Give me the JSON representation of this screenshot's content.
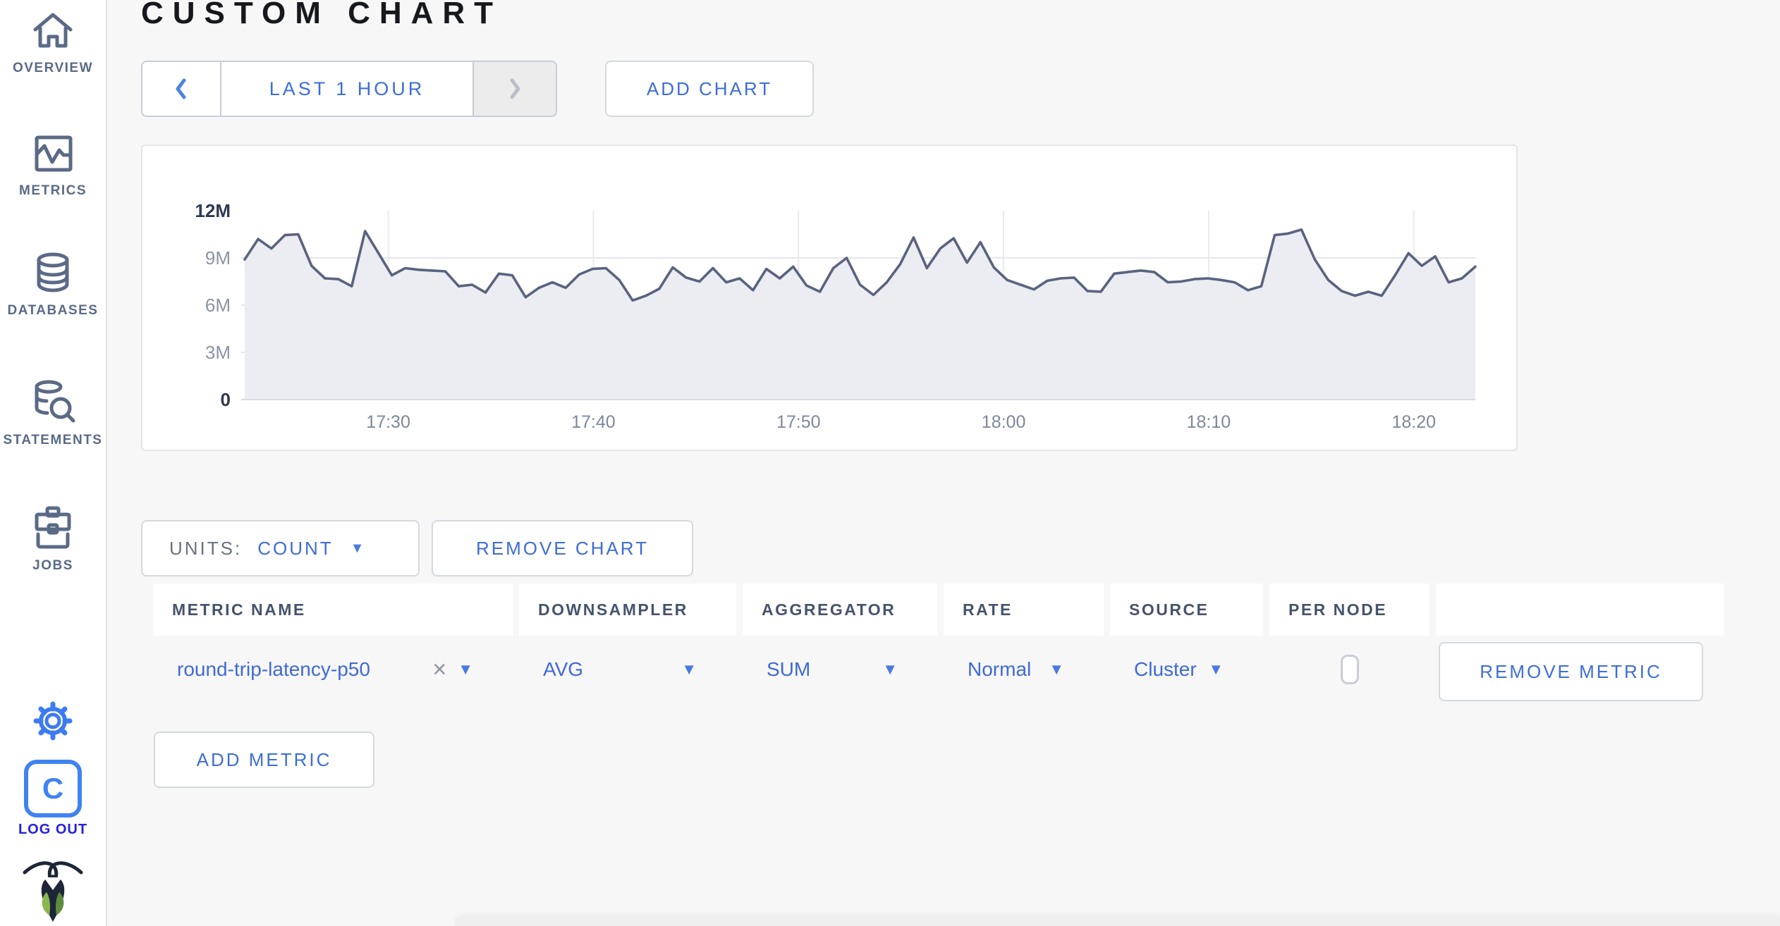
{
  "page": {
    "title": "CUSTOM CHART"
  },
  "toolbar": {
    "time_range_label": "LAST 1 HOUR",
    "prev_icon": "chevron-left",
    "next_icon": "chevron-right",
    "add_chart_label": "ADD CHART"
  },
  "chart_controls": {
    "units_label": "UNITS:",
    "units_value": "COUNT",
    "remove_chart_label": "REMOVE CHART",
    "add_metric_label": "ADD METRIC"
  },
  "metrics_table": {
    "headers": [
      "METRIC NAME",
      "DOWNSAMPLER",
      "AGGREGATOR",
      "RATE",
      "SOURCE",
      "PER NODE",
      ""
    ],
    "rows": [
      {
        "metric_name": "round-trip-latency-p50",
        "clear_icon": "×",
        "downsampler": "AVG",
        "aggregator": "SUM",
        "rate": "Normal",
        "source": "Cluster",
        "per_node_checked": false,
        "remove_label": "REMOVE METRIC"
      }
    ]
  },
  "sidebar": {
    "items": [
      {
        "label": "OVERVIEW",
        "icon": "home-icon"
      },
      {
        "label": "METRICS",
        "icon": "metrics-icon"
      },
      {
        "label": "DATABASES",
        "icon": "database-icon"
      },
      {
        "label": "STATEMENTS",
        "icon": "statements-icon"
      },
      {
        "label": "JOBS",
        "icon": "jobs-icon"
      }
    ],
    "settings_icon": "gear-icon",
    "logout": {
      "label": "LOG OUT",
      "letter": "C",
      "icon": "cockroach-c-icon"
    },
    "brand_icon": "cockroach-bug-icon"
  },
  "colors": {
    "accent_blue": "#3d6dd8",
    "logout_blue": "#2421df",
    "slate": "#5a6a86",
    "line": "#59637f",
    "area_fill": "#ecedf2",
    "grid": "#e4e6ea",
    "axis_dark_tick": "#2e3a52",
    "axis_light_tick": "#8b93a6",
    "x_tick": "#7d879c"
  },
  "chart_data": {
    "type": "area",
    "title": "",
    "unit": "count",
    "ylim": [
      0,
      12
    ],
    "grid": true,
    "legend": "none",
    "x_start": "17:23",
    "x_end": "18:23",
    "x_ticks": [
      "17:30",
      "17:40",
      "17:50",
      "18:00",
      "18:10",
      "18:20"
    ],
    "y_ticks": [
      {
        "label": "12M",
        "value": 12
      },
      {
        "label": "9M",
        "value": 9
      },
      {
        "label": "6M",
        "value": 6
      },
      {
        "label": "3M",
        "value": 3
      },
      {
        "label": "0",
        "value": 0
      }
    ],
    "series": [
      {
        "name": "round-trip-latency-p50",
        "values_millions": [
          8.9,
          10.2,
          9.6,
          10.45,
          10.5,
          8.5,
          7.7,
          7.65,
          7.2,
          10.7,
          9.3,
          7.9,
          8.35,
          8.25,
          8.2,
          8.15,
          7.2,
          7.3,
          6.8,
          8.0,
          7.9,
          6.5,
          7.1,
          7.45,
          7.1,
          7.95,
          8.3,
          8.35,
          7.6,
          6.3,
          6.6,
          7.05,
          8.4,
          7.75,
          7.5,
          8.35,
          7.45,
          7.7,
          6.95,
          8.3,
          7.7,
          8.45,
          7.25,
          6.85,
          8.35,
          9.0,
          7.3,
          6.65,
          7.45,
          8.6,
          10.3,
          8.35,
          9.6,
          10.25,
          8.7,
          10.0,
          8.4,
          7.6,
          7.3,
          7.0,
          7.55,
          7.7,
          7.75,
          6.9,
          6.85,
          8.0,
          8.1,
          8.2,
          8.1,
          7.45,
          7.5,
          7.65,
          7.7,
          7.6,
          7.45,
          6.95,
          7.2,
          10.45,
          10.55,
          10.8,
          8.9,
          7.6,
          6.9,
          6.6,
          6.85,
          6.6,
          7.9,
          9.3,
          8.5,
          9.1,
          7.45,
          7.7,
          8.45
        ]
      }
    ]
  }
}
